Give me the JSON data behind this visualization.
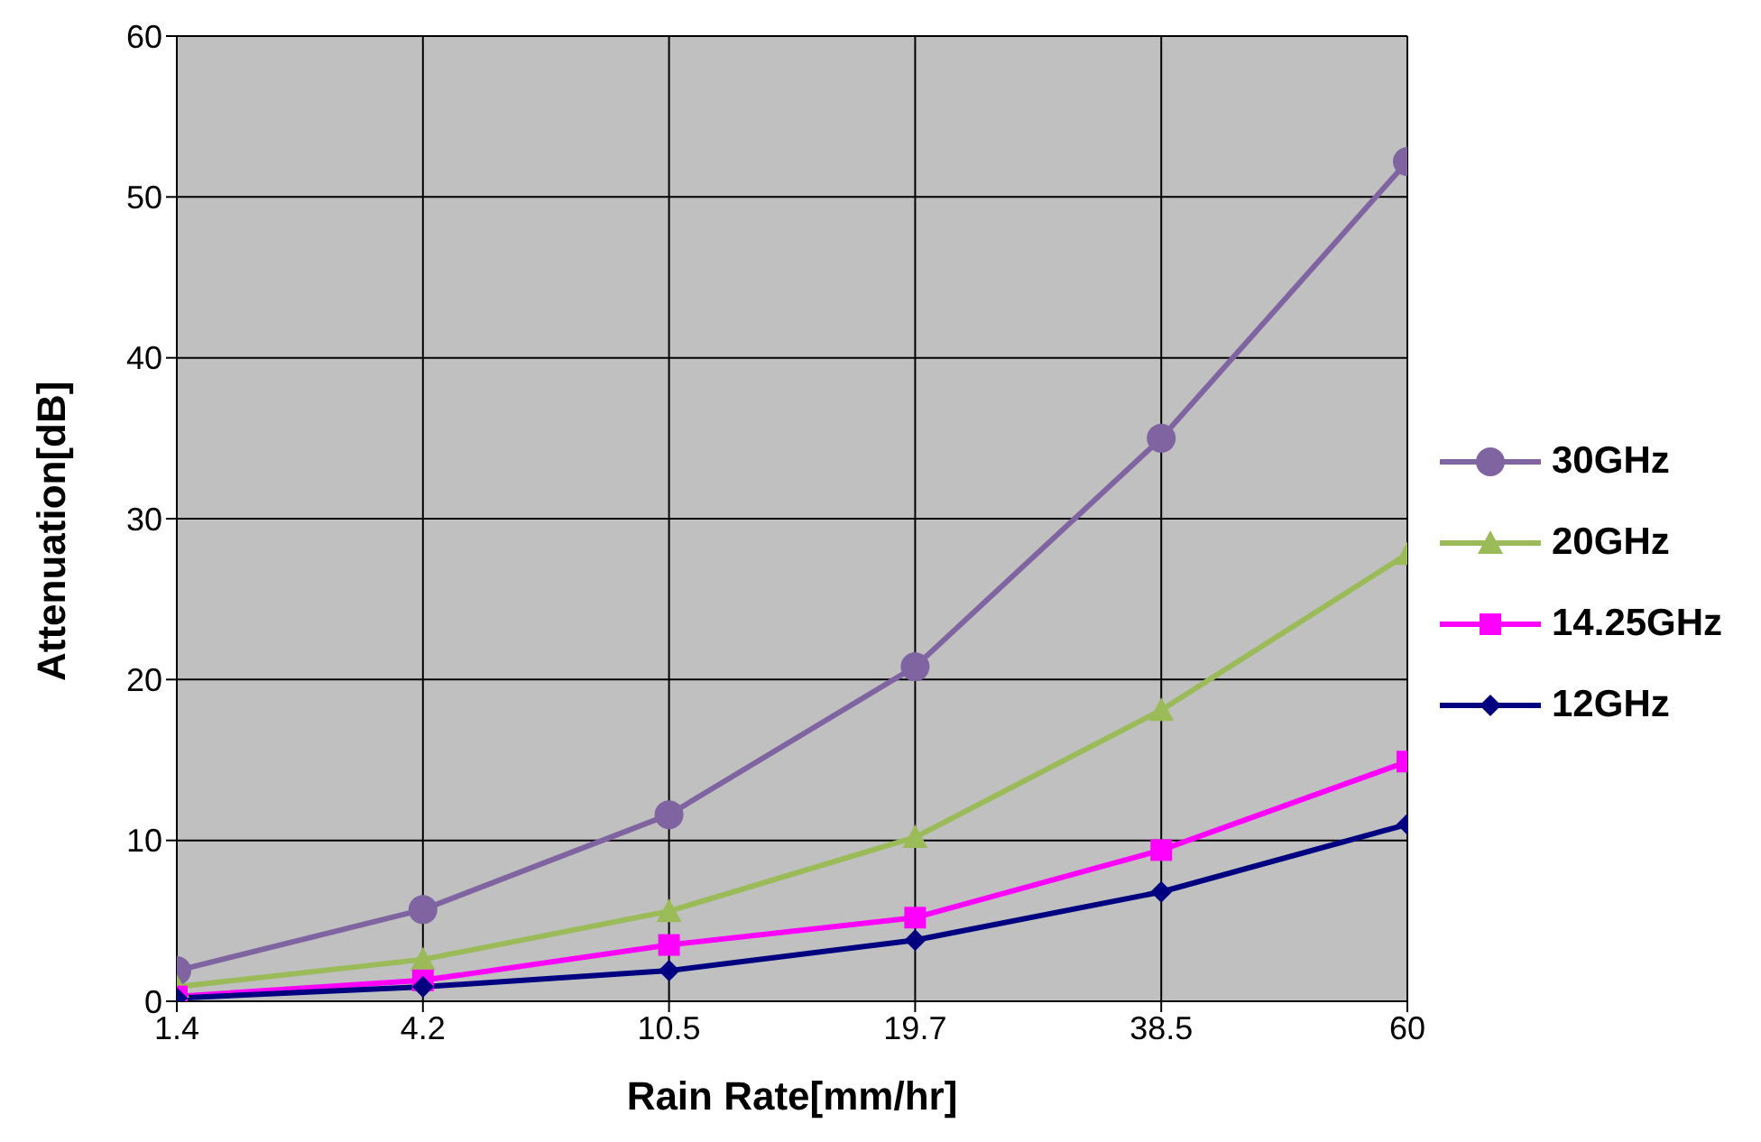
{
  "chart_data": {
    "type": "line",
    "xlabel": "Rain Rate[mm/hr]",
    "ylabel": "Attenuation[dB]",
    "categories": [
      "1.4",
      "4.2",
      "10.5",
      "19.7",
      "38.5",
      "60"
    ],
    "ylim": [
      0,
      60
    ],
    "yticks": [
      0,
      10,
      20,
      30,
      40,
      50,
      60
    ],
    "grid": true,
    "legend": "right",
    "series": [
      {
        "name": "30GHz",
        "color": "#8064a2",
        "marker": "circle",
        "values": [
          1.9,
          5.7,
          11.6,
          20.8,
          35.0,
          52.2
        ]
      },
      {
        "name": "20GHz",
        "color": "#9bbb59",
        "marker": "triangle",
        "values": [
          0.9,
          2.6,
          5.6,
          10.2,
          18.1,
          27.8
        ]
      },
      {
        "name": "14.25GHz",
        "color": "#ff00ff",
        "marker": "square",
        "values": [
          0.3,
          1.3,
          3.5,
          5.2,
          9.4,
          14.9
        ]
      },
      {
        "name": "12GHz",
        "color": "#000080",
        "marker": "diamond",
        "values": [
          0.2,
          0.9,
          1.9,
          3.8,
          6.8,
          11.0
        ]
      }
    ]
  }
}
